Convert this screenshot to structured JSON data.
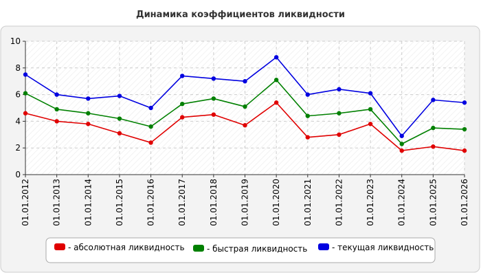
{
  "chart_data": {
    "type": "line",
    "title": "Динамика коэффициентов ликвидности",
    "xlabel": "",
    "ylabel": "",
    "ylim": [
      0,
      10
    ],
    "yticks": [
      0,
      2,
      4,
      6,
      8,
      10
    ],
    "categories": [
      "01.01.2012",
      "01.01.2013",
      "01.01.2014",
      "01.01.2015",
      "01.01.2016",
      "01.01.2017",
      "01.01.2018",
      "01.01.2019",
      "01.01.2020",
      "01.01.2021",
      "01.01.2022",
      "01.01.2023",
      "01.01.2024",
      "01.01.2025",
      "01.01.2026"
    ],
    "grid": true,
    "legend_position": "bottom",
    "series": [
      {
        "name": "- абсолютная ликвидность",
        "color": "#e00000",
        "values": [
          4.6,
          4.0,
          3.8,
          3.1,
          2.4,
          4.3,
          4.5,
          3.7,
          5.4,
          2.8,
          3.0,
          3.8,
          1.8,
          2.1,
          1.8
        ]
      },
      {
        "name": "- быстрая ликвидность",
        "color": "#008000",
        "values": [
          6.1,
          4.9,
          4.6,
          4.2,
          3.6,
          5.3,
          5.7,
          5.1,
          7.1,
          4.4,
          4.6,
          4.9,
          2.3,
          3.5,
          3.4
        ]
      },
      {
        "name": "- текущая ликвидность",
        "color": "#0000e0",
        "values": [
          7.5,
          6.0,
          5.7,
          5.9,
          5.0,
          7.4,
          7.2,
          7.0,
          8.8,
          6.0,
          6.4,
          6.1,
          2.9,
          5.6,
          5.4
        ]
      }
    ]
  }
}
